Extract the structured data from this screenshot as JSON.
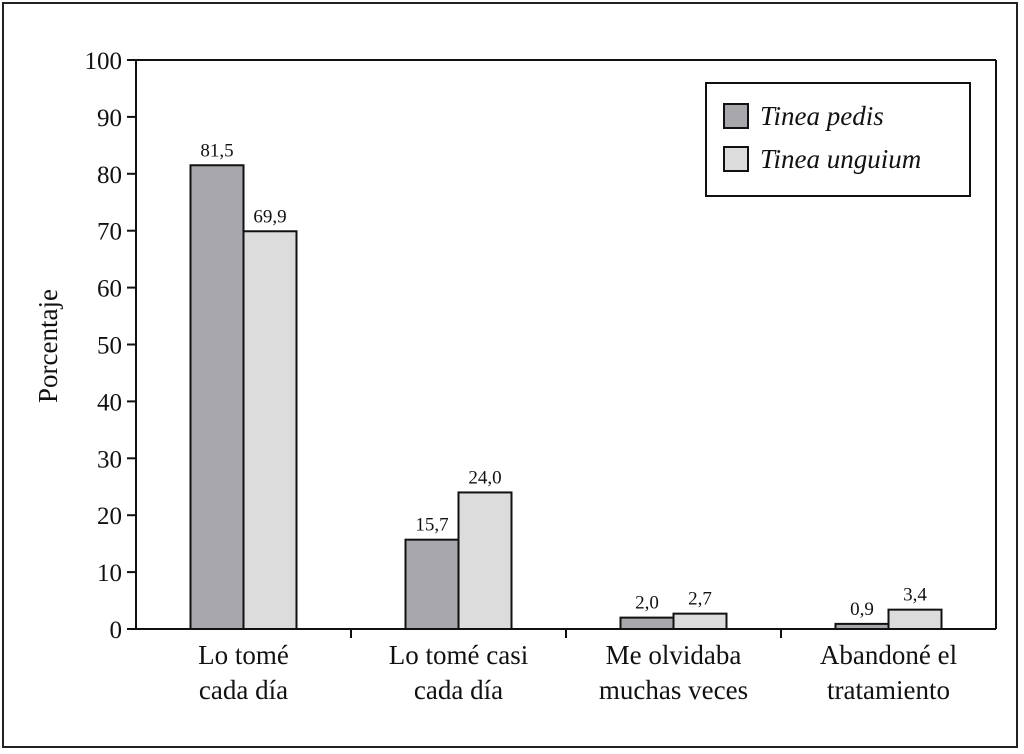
{
  "chart_data": {
    "type": "bar",
    "categories": [
      [
        "Lo tomé",
        "cada día"
      ],
      [
        "Lo tomé casi",
        "cada día"
      ],
      [
        "Me olvidaba",
        "muchas veces"
      ],
      [
        "Abandoné el",
        "tratamiento"
      ]
    ],
    "series": [
      {
        "name": "Tinea pedis",
        "values": [
          81.5,
          15.7,
          2.0,
          0.9
        ],
        "labels": [
          "81,5",
          "15,7",
          "2,0",
          "0,9"
        ],
        "color": "#a8a8ac"
      },
      {
        "name": "Tinea unguium",
        "values": [
          69.9,
          24.0,
          2.7,
          3.4
        ],
        "labels": [
          "69,9",
          "24,0",
          "2,7",
          "3,4"
        ],
        "color": "#dcdcdc"
      }
    ],
    "title": "",
    "xlabel": "",
    "ylabel": "Porcentaje",
    "ylim": [
      0,
      100
    ],
    "yticks": [
      0,
      10,
      20,
      30,
      40,
      50,
      60,
      70,
      80,
      90,
      100
    ],
    "grid": false,
    "legend_position": "top-right"
  }
}
